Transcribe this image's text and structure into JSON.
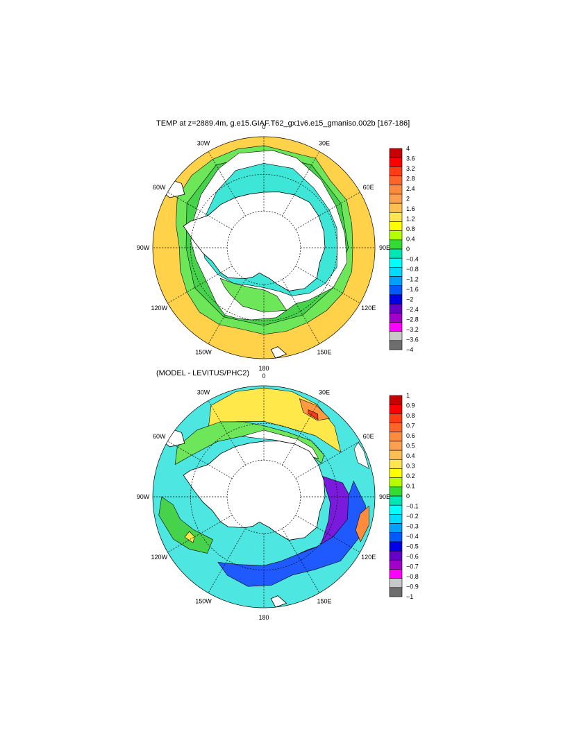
{
  "panel1": {
    "title": "TEMP at z=2889.4m, g.e15.GIAF.T62_gx1v6.e15_gmaniso.002b [167-186]",
    "lon_labels": [
      "0",
      "30E",
      "60E",
      "90E",
      "120E",
      "150E",
      "180",
      "150W",
      "120W",
      "90W",
      "60W",
      "30W"
    ],
    "colorbar": {
      "labels": [
        "4",
        "3.6",
        "3.2",
        "2.8",
        "2.4",
        "2",
        "1.6",
        "1.2",
        "0.8",
        "0.4",
        "0",
        "−0.4",
        "−0.8",
        "−1.2",
        "−1.6",
        "−2",
        "−2.4",
        "−2.8",
        "−3.2",
        "−3.6",
        "−4"
      ],
      "colors": [
        "#c80000",
        "#ff0000",
        "#ff3c14",
        "#ff6428",
        "#ff8c3c",
        "#ffa050",
        "#ffbe50",
        "#ffe650",
        "#ffff00",
        "#b4ff00",
        "#32dc32",
        "#00e6b4",
        "#00ffff",
        "#00dcff",
        "#00a0ff",
        "#005aff",
        "#0000e6",
        "#6400c8",
        "#a000c8",
        "#ff00ff",
        "#c8c8c8",
        "#6e6e6e"
      ]
    }
  },
  "panel2": {
    "title": "(MODEL - LEVITUS/PHC2)",
    "lon_labels": [
      "0",
      "30E",
      "60E",
      "90E",
      "120E",
      "150E",
      "180",
      "150W",
      "120W",
      "90W",
      "60W",
      "30W"
    ],
    "colorbar": {
      "labels": [
        "1",
        "0.9",
        "0.8",
        "0.7",
        "0.6",
        "0.5",
        "0.4",
        "0.3",
        "0.2",
        "0.1",
        "0",
        "−0.1",
        "−0.2",
        "−0.3",
        "−0.4",
        "−0.5",
        "−0.6",
        "−0.7",
        "−0.8",
        "−0.9",
        "−1"
      ],
      "colors": [
        "#c80000",
        "#ff0000",
        "#ff3c14",
        "#ff6428",
        "#ff8c3c",
        "#ffa050",
        "#ffbe50",
        "#ffe650",
        "#ffff00",
        "#b4ff00",
        "#32dc32",
        "#00e6b4",
        "#00ffff",
        "#00dcff",
        "#00a0ff",
        "#005aff",
        "#0000e6",
        "#6400c8",
        "#a000c8",
        "#ff00ff",
        "#c8c8c8",
        "#6e6e6e"
      ]
    }
  }
}
